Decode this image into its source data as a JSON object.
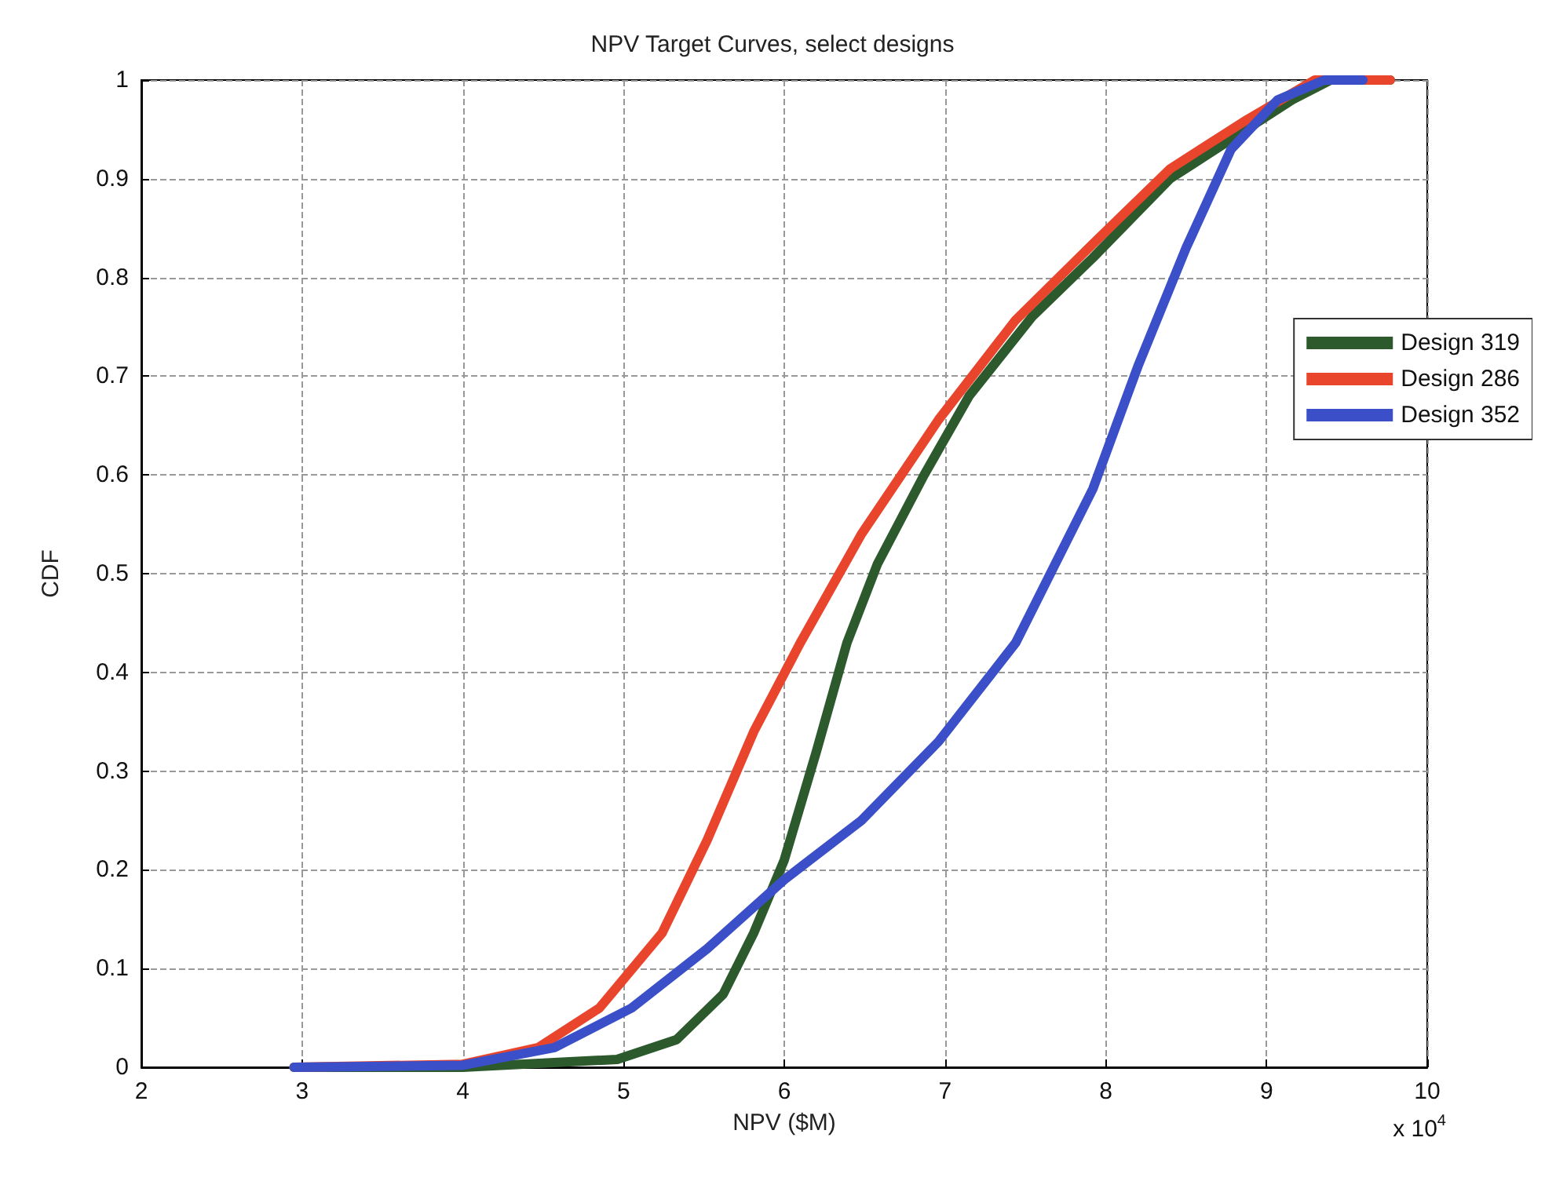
{
  "chart_data": {
    "type": "line",
    "title": "NPV Target Curves, select designs",
    "xlabel": "NPV ($M)",
    "ylabel": "CDF",
    "annotations": [
      "x 10$^{4}$"
    ],
    "xlim": [
      2,
      10
    ],
    "xticks": [
      2,
      3,
      4,
      5,
      6,
      7,
      8,
      9,
      10
    ],
    "ylim": [
      0,
      1
    ],
    "yticks": [
      0,
      0.1,
      0.2,
      0.3,
      0.4,
      0.5,
      0.6,
      0.7,
      0.8,
      0.9,
      1
    ],
    "grid": true,
    "legend": "right",
    "line_style": "solid",
    "series": [
      {
        "name": "Design 319",
        "color": "#2d5a2d",
        "x": [
          2.95,
          4.0,
          4.96,
          5.33,
          5.62,
          5.81,
          6.0,
          6.2,
          6.39,
          6.58,
          6.87,
          7.15,
          7.54,
          7.92,
          8.4,
          8.78,
          9.16,
          9.4,
          9.77
        ],
        "values": [
          0,
          0,
          0.008,
          0.028,
          0.074,
          0.136,
          0.21,
          0.32,
          0.43,
          0.51,
          0.6,
          0.68,
          0.76,
          0.82,
          0.9,
          0.94,
          0.98,
          1,
          1
        ]
      },
      {
        "name": "Design 286",
        "color": "#e8452c",
        "x": [
          2.95,
          4.0,
          4.47,
          4.85,
          5.24,
          5.52,
          5.81,
          6.1,
          6.48,
          6.96,
          7.44,
          7.92,
          8.4,
          8.88,
          9.3,
          9.77
        ],
        "values": [
          0,
          0.003,
          0.02,
          0.06,
          0.136,
          0.23,
          0.34,
          0.43,
          0.54,
          0.656,
          0.757,
          0.834,
          0.91,
          0.96,
          1,
          1
        ]
      },
      {
        "name": "Design 352",
        "color": "#3a4fc8",
        "x": [
          2.95,
          4.0,
          4.57,
          5.05,
          5.52,
          6.0,
          6.48,
          6.96,
          7.44,
          7.92,
          8.2,
          8.5,
          8.78,
          9.07,
          9.36,
          9.6
        ],
        "values": [
          0,
          0.002,
          0.02,
          0.06,
          0.12,
          0.19,
          0.25,
          0.33,
          0.43,
          0.586,
          0.71,
          0.83,
          0.93,
          0.98,
          1,
          1
        ]
      }
    ]
  }
}
